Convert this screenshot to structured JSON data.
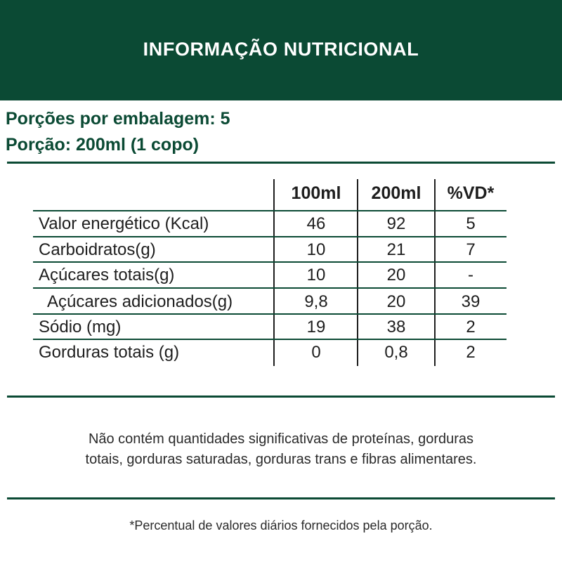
{
  "header": {
    "title": "INFORMAÇÃO NUTRICIONAL"
  },
  "serving": {
    "per_package": "Porções por embalagem: 5",
    "portion": "Porção: 200ml (1 copo)"
  },
  "table": {
    "columns": [
      "100ml",
      "200ml",
      "%VD*"
    ],
    "rows": [
      {
        "label": "Valor energético (Kcal)",
        "v100": "46",
        "v200": "92",
        "vd": "5"
      },
      {
        "label": "Carboidratos(g)",
        "v100": "10",
        "v200": "21",
        "vd": "7"
      },
      {
        "label": "Açúcares totais(g)",
        "v100": "10",
        "v200": "20",
        "vd": "-"
      },
      {
        "label": "Açúcares adicionados(g)",
        "v100": "9,8",
        "v200": "20",
        "vd": "39"
      },
      {
        "label": "Sódio (mg)",
        "v100": "19",
        "v200": "38",
        "vd": "2"
      },
      {
        "label": "Gorduras totais (g)",
        "v100": "0",
        "v200": "0,8",
        "vd": "2"
      }
    ]
  },
  "notes": {
    "line1": "Não contém quantidades significativas de proteínas, gorduras",
    "line2": "totais, gorduras saturadas, gorduras trans e fibras alimentares.",
    "footnote": "*Percentual de valores diários fornecidos pela porção."
  },
  "colors": {
    "brand_green": "#0b4a34",
    "text": "#1e1e1e"
  }
}
